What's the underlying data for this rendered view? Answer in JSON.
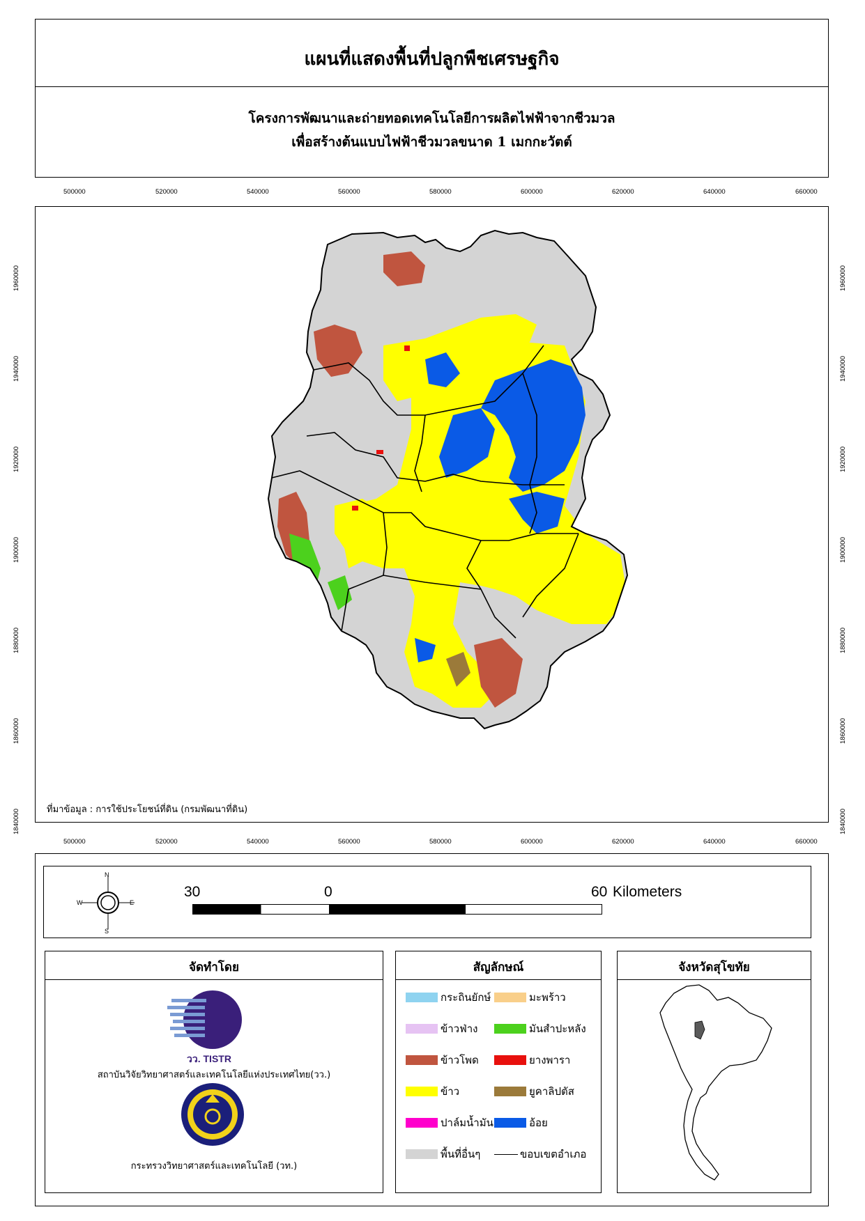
{
  "title": "แผนที่แสดงพื้นที่ปลูกพืชเศรษฐกิจ",
  "subtitle_line1": "โครงการพัฒนาและถ่ายทอดเทคโนโลยีการผลิตไฟฟ้าจากชีวมวล",
  "subtitle_line2": "เพื่อสร้างต้นแบบไฟฟ้าชีวมวลขนาด 1 เมกกะวัตต์",
  "easting_ticks": [
    "500000",
    "520000",
    "540000",
    "560000",
    "580000",
    "600000",
    "620000",
    "640000",
    "660000"
  ],
  "northing_ticks": [
    "1960000",
    "1940000",
    "1920000",
    "1900000",
    "1880000",
    "1860000",
    "1840000"
  ],
  "source_note": "ที่มาข้อมูล : การใช้ประโยชน์ที่ดิน  (กรมพัฒนาที่ดิน)",
  "north_arrow": {
    "n": "N",
    "s": "S",
    "e": "E",
    "w": "W"
  },
  "scale_bar": {
    "left": "30",
    "mid": "0",
    "right": "60",
    "unit": "Kilometers"
  },
  "producer": {
    "heading": "จัดทำโดย",
    "logo1_text": "วว. TISTR",
    "org1": "สถาบันวิจัยวิทยาศาสตร์และเทคโนโลยีแห่งประเทศไทย(วว.)",
    "org2": "กระทรวงวิทยาศาสตร์และเทคโนโลยี (วท.)"
  },
  "legend": {
    "heading": "สัญลักษณ์",
    "items": [
      {
        "label": "กระถินยักษ์",
        "color": "#8fd3f0"
      },
      {
        "label": "มะพร้าว",
        "color": "#f9cf8a"
      },
      {
        "label": "ข้าวฟ่าง",
        "color": "#e6c3f3"
      },
      {
        "label": "มันสำปะหลัง",
        "color": "#4cd11d"
      },
      {
        "label": "ข้าวโพด",
        "color": "#c0553f"
      },
      {
        "label": "ยางพารา",
        "color": "#e8100d"
      },
      {
        "label": "ข้าว",
        "color": "#ffff00"
      },
      {
        "label": "ยูคาลิปตัส",
        "color": "#9b7a3a"
      },
      {
        "label": "ปาล์มน้ำมัน",
        "color": "#ff00cc"
      },
      {
        "label": "อ้อย",
        "color": "#0a5ae6"
      },
      {
        "label": "พื้นที่อื่นๆ",
        "color": "#d4d4d4"
      },
      {
        "label": "ขอบเขตอำเภอ",
        "color": "#000000"
      }
    ]
  },
  "inset": {
    "heading": "จังหวัดสุโขทัย"
  }
}
